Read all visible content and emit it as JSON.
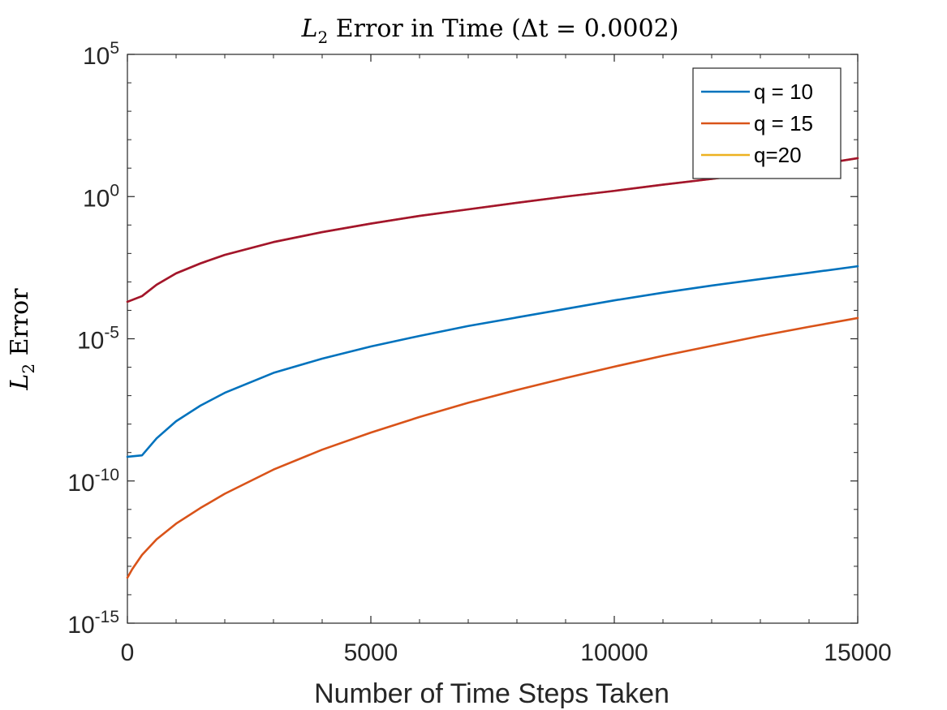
{
  "chart_data": {
    "type": "line",
    "title": "L₂ Error in Time (Δt = 0.0002)",
    "title_parts": {
      "l": "L",
      "sub": "2",
      "rest": " Error in Time (Δt = 0.0002)"
    },
    "xlabel": "Number of Time Steps Taken",
    "ylabel": "L₂ Error",
    "ylabel_parts": {
      "l": "L",
      "sub": "2",
      "rest": " Error"
    },
    "xlim": [
      0,
      15000
    ],
    "ylim_exponent": [
      -15,
      5
    ],
    "yscale": "log",
    "grid": false,
    "legend_position": "top-right",
    "x_ticks": [
      {
        "value": 0,
        "label": "0"
      },
      {
        "value": 5000,
        "label": "5000"
      },
      {
        "value": 10000,
        "label": "10000"
      },
      {
        "value": 15000,
        "label": "15000"
      }
    ],
    "y_ticks": [
      {
        "exponent": 5,
        "base": "10",
        "sup": "5"
      },
      {
        "exponent": 0,
        "base": "10",
        "sup": "0"
      },
      {
        "exponent": -5,
        "base": "10",
        "sup": "-5"
      },
      {
        "exponent": -10,
        "base": "10",
        "sup": "-10"
      },
      {
        "exponent": -15,
        "base": "10",
        "sup": "-15"
      }
    ],
    "series": [
      {
        "name": "q = 10",
        "color": "#0072BD",
        "x": [
          0,
          300,
          600,
          1000,
          1500,
          2000,
          3000,
          4000,
          5000,
          6000,
          7000,
          8000,
          9000,
          10000,
          11000,
          12000,
          13000,
          14000,
          15000
        ],
        "log10_y": [
          -9.15,
          -9.1,
          -8.5,
          -7.9,
          -7.35,
          -6.9,
          -6.2,
          -5.7,
          -5.27,
          -4.9,
          -4.55,
          -4.25,
          -3.95,
          -3.65,
          -3.38,
          -3.13,
          -2.9,
          -2.68,
          -2.45
        ]
      },
      {
        "name": "q = 15",
        "color": "#D95319",
        "x": [
          0,
          100,
          300,
          600,
          1000,
          1500,
          2000,
          3000,
          4000,
          5000,
          6000,
          7000,
          8000,
          9000,
          10000,
          11000,
          12000,
          13000,
          14000,
          15000
        ],
        "log10_y": [
          -13.4,
          -13.1,
          -12.6,
          -12.05,
          -11.5,
          -10.95,
          -10.45,
          -9.6,
          -8.9,
          -8.3,
          -7.75,
          -7.25,
          -6.8,
          -6.38,
          -5.98,
          -5.6,
          -5.25,
          -4.9,
          -4.58,
          -4.27
        ]
      },
      {
        "name": "q=20",
        "color": "#EDB120",
        "x": [
          0,
          300,
          600,
          1000,
          1500,
          2000,
          3000,
          4000,
          5000,
          6000,
          7000,
          8000,
          9000,
          10000,
          11000,
          12000,
          13000,
          14000,
          15000
        ],
        "log10_y": [
          -3.7,
          -3.5,
          -3.1,
          -2.7,
          -2.35,
          -2.05,
          -1.6,
          -1.25,
          -0.95,
          -0.68,
          -0.45,
          -0.22,
          0.0,
          0.2,
          0.42,
          0.62,
          0.85,
          1.08,
          1.35
        ]
      },
      {
        "name": "",
        "color": "#A2142F",
        "x": [
          0,
          300,
          600,
          1000,
          1500,
          2000,
          3000,
          4000,
          5000,
          6000,
          7000,
          8000,
          9000,
          10000,
          11000,
          12000,
          13000,
          14000,
          15000
        ],
        "log10_y": [
          -3.7,
          -3.5,
          -3.1,
          -2.7,
          -2.35,
          -2.05,
          -1.6,
          -1.25,
          -0.95,
          -0.68,
          -0.45,
          -0.22,
          0.0,
          0.2,
          0.42,
          0.62,
          0.85,
          1.08,
          1.35
        ]
      }
    ],
    "legend_entries": [
      {
        "label": "q = 10",
        "color": "#0072BD"
      },
      {
        "label": "q = 15",
        "color": "#D95319"
      },
      {
        "label": "q=20",
        "color": "#EDB120"
      }
    ]
  }
}
